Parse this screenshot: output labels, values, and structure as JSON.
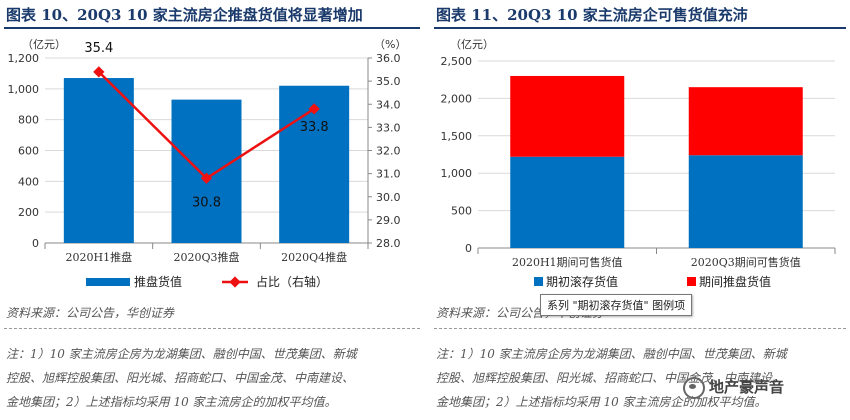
{
  "colors": {
    "bar_blue": "#0070C0",
    "line_red": "#EE1111",
    "bar_red": "#FF0000",
    "title": "#1A3A6B"
  },
  "left": {
    "title": "图表 10、20Q3 10 家主流房企推盘货值将显著增加",
    "source": "资料来源：公司公告，华创证券",
    "notes": [
      "注：1）10 家主流房企房为龙湖集团、融创中国、世茂集团、新城",
      "控股、旭辉控股集团、阳光城、招商蛇口、中国金茂、中南建设、",
      "金地集团；2）上述指标均采用 10 家主流房企的加权平均值。"
    ]
  },
  "right": {
    "title": "图表 11、20Q3 10 家主流房企可售货值充沛",
    "source": "资料来源：公司公告，华创证券",
    "notes": [
      "注：1）10 家主流房企房为龙湖集团、融创中国、世茂集团、新城",
      "控股、旭辉控股集团、阳光城、招商蛇口、中国金茂、中南建设、",
      "金地集团；2）上述指标均采用 10 家主流房企的加权平均值。"
    ],
    "tooltip": "系列 \"期初滚存货值\" 图例项",
    "watermark": "地产豪声音"
  },
  "chart_data": [
    {
      "type": "bar",
      "title": "图表 10、20Q3 10 家主流房企推盘货值将显著增加",
      "categories": [
        "2020H1推盘",
        "2020Q3推盘",
        "2020Q4推盘"
      ],
      "series": [
        {
          "name": "推盘货值",
          "type": "bar",
          "axis": "left",
          "values": [
            1070,
            930,
            1020
          ]
        },
        {
          "name": "占比（右轴）",
          "type": "line",
          "axis": "right",
          "values": [
            35.4,
            30.8,
            33.8
          ]
        }
      ],
      "data_labels": [
        "35.4",
        "30.8",
        "33.8"
      ],
      "ylabel_left": "（亿元）",
      "ylabel_right": "（%）",
      "ylim": [
        0,
        1200
      ],
      "yticks": [
        "0",
        "200",
        "400",
        "600",
        "800",
        "1,000",
        "1,200"
      ],
      "y2lim": [
        28.0,
        36.0
      ],
      "y2ticks": [
        "28.0",
        "29.0",
        "30.0",
        "31.0",
        "32.0",
        "33.0",
        "34.0",
        "35.0",
        "36.0"
      ],
      "legend": [
        "推盘货值",
        "占比（右轴）"
      ],
      "legend_position": "bottom",
      "grid": true
    },
    {
      "type": "bar",
      "stacked": true,
      "title": "图表 11、20Q3 10 家主流房企可售货值充沛",
      "categories": [
        "2020H1期间可售货值",
        "2020Q3期间可售货值"
      ],
      "series": [
        {
          "name": "期初滚存货值",
          "values": [
            1220,
            1240
          ]
        },
        {
          "name": "期间推盘货值",
          "values": [
            1080,
            910
          ]
        }
      ],
      "ylabel": "（亿元）",
      "ylim": [
        0,
        2500
      ],
      "yticks": [
        "0",
        "500",
        "1,000",
        "1,500",
        "2,000",
        "2,500"
      ],
      "legend": [
        "期初滚存货值",
        "期间推盘货值"
      ],
      "legend_position": "bottom",
      "grid": true
    }
  ]
}
